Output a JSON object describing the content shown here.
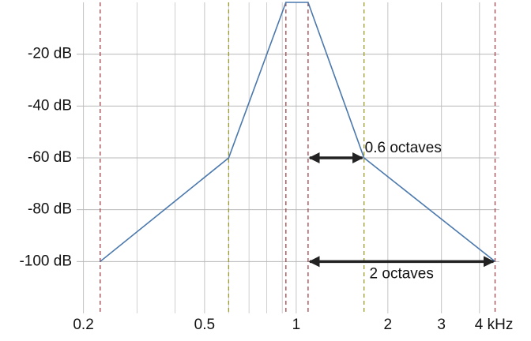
{
  "chart_data": {
    "type": "line",
    "series": [
      {
        "color": "#4a78ad",
        "x": [
          0.227,
          0.6,
          0.925,
          1.094,
          1.67,
          4.5
        ],
        "values": [
          -100,
          -60,
          0,
          0,
          -60,
          -100
        ]
      }
    ],
    "vline_colors": [
      "#a0454a",
      "#9a9a30",
      "#a0454a",
      "#a0454a",
      "#9a9a30",
      "#a0454a"
    ],
    "log_x": true,
    "xlim": [
      0.19,
      4.65
    ],
    "xticks": [
      0.2,
      0.5,
      1,
      2,
      3,
      {
        "value": 4,
        "label": "4 kHz"
      }
    ],
    "xminor": [
      0.3,
      0.4,
      0.6,
      0.7,
      0.8,
      0.9
    ],
    "ylim": [
      -120,
      0
    ],
    "yticks": [
      {
        "value": -20,
        "label": "-20 dB"
      },
      {
        "value": -40,
        "label": "-40 dB"
      },
      {
        "value": -60,
        "label": "-60 dB"
      },
      {
        "value": -80,
        "label": "-80 dB"
      },
      {
        "value": -100,
        "label": "-100 dB"
      }
    ],
    "grid": true,
    "annotations": [
      {
        "text": "0.6 octaves",
        "x1": 1.094,
        "x2": 1.67,
        "y": -60
      },
      {
        "text": "2 octaves",
        "x1": 1.094,
        "x2": 4.5,
        "y": -100
      }
    ]
  }
}
